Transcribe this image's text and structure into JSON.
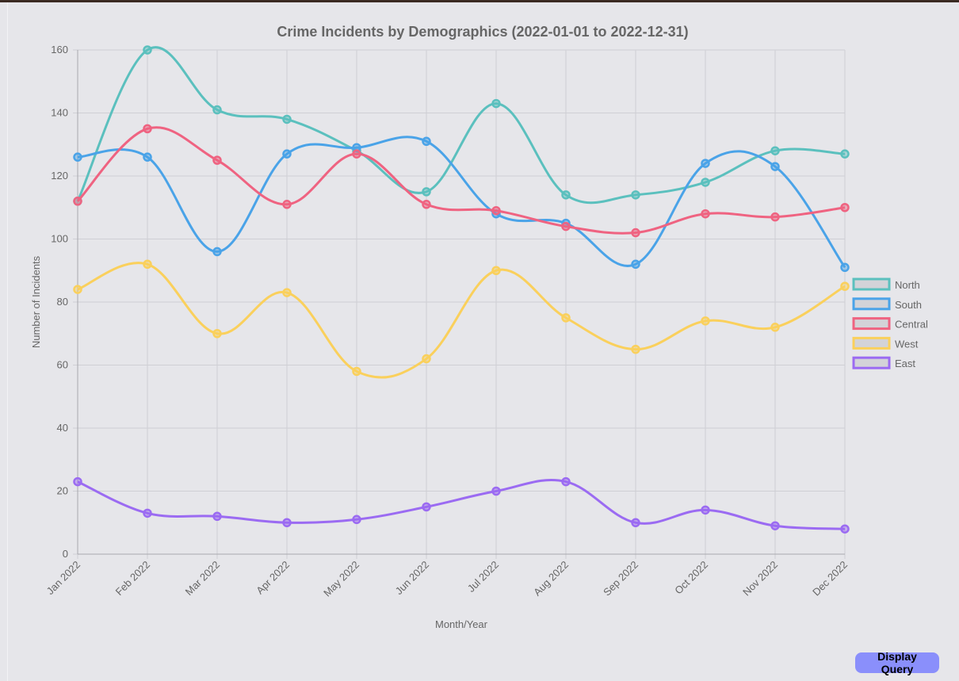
{
  "chart_data": {
    "type": "line",
    "title": "Crime Incidents by Demographics (2022-01-01 to 2022-12-31)",
    "xlabel": "Month/Year",
    "ylabel": "Number of Incidents",
    "ylim": [
      0,
      160
    ],
    "yticks": [
      0,
      20,
      40,
      60,
      80,
      100,
      120,
      140,
      160
    ],
    "grid": true,
    "legend_position": "right",
    "categories": [
      "Jan 2022",
      "Feb 2022",
      "Mar 2022",
      "Apr 2022",
      "May 2022",
      "Jun 2022",
      "Jul 2022",
      "Aug 2022",
      "Sep 2022",
      "Oct 2022",
      "Nov 2022",
      "Dec 2022"
    ],
    "series": [
      {
        "name": "North",
        "color": "#5bc0be",
        "values": [
          112,
          160,
          141,
          138,
          128,
          115,
          143,
          114,
          114,
          118,
          128,
          127
        ]
      },
      {
        "name": "South",
        "color": "#4aa3e8",
        "values": [
          126,
          126,
          96,
          127,
          129,
          131,
          108,
          105,
          92,
          124,
          123,
          91
        ]
      },
      {
        "name": "Central",
        "color": "#ef6381",
        "values": [
          112,
          135,
          125,
          111,
          127,
          111,
          109,
          104,
          102,
          108,
          107,
          110
        ]
      },
      {
        "name": "West",
        "color": "#fad05c",
        "values": [
          84,
          92,
          70,
          83,
          58,
          62,
          90,
          75,
          65,
          74,
          72,
          85
        ]
      },
      {
        "name": "East",
        "color": "#9b6bf2",
        "values": [
          23,
          13,
          12,
          10,
          11,
          15,
          20,
          23,
          10,
          14,
          9,
          8
        ]
      }
    ]
  },
  "controls": {
    "display_query_label": "Display Query"
  }
}
